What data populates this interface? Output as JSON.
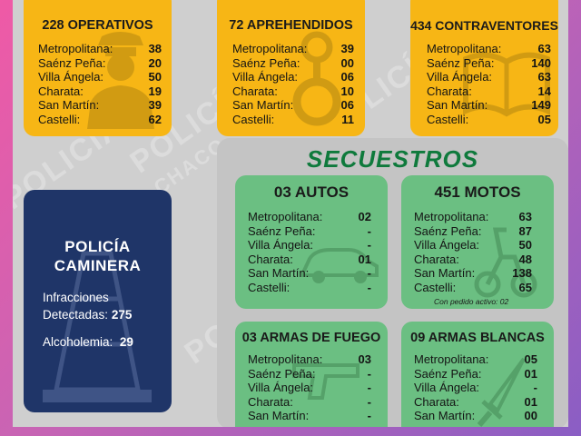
{
  "operativos": {
    "title": "228 OPERATIVOS",
    "rows": [
      {
        "label": "Metropolitana:",
        "value": "38"
      },
      {
        "label": "Saénz Peña:",
        "value": "20"
      },
      {
        "label": "Villa Ángela:",
        "value": "50"
      },
      {
        "label": "Charata:",
        "value": "19"
      },
      {
        "label": "San Martín:",
        "value": "39"
      },
      {
        "label": "Castelli:",
        "value": "62"
      }
    ]
  },
  "aprehendidos": {
    "title": "72 APREHENDIDOS",
    "rows": [
      {
        "label": "Metropolitana:",
        "value": "39"
      },
      {
        "label": "Saénz Peña:",
        "value": "00"
      },
      {
        "label": "Villa Ángela:",
        "value": "06"
      },
      {
        "label": "Charata:",
        "value": "10"
      },
      {
        "label": "San Martín:",
        "value": "06"
      },
      {
        "label": "Castelli:",
        "value": "11"
      }
    ]
  },
  "contraventores": {
    "title": "434 CONTRAVENTORES",
    "rows": [
      {
        "label": "Metropolitana:",
        "value": "63"
      },
      {
        "label": "Saénz Peña:",
        "value": "140"
      },
      {
        "label": "Villa Ángela:",
        "value": "63"
      },
      {
        "label": "Charata:",
        "value": "14"
      },
      {
        "label": "San Martín:",
        "value": "149"
      },
      {
        "label": "Castelli:",
        "value": "05"
      }
    ]
  },
  "secuestros": {
    "title": "SECUESTROS",
    "autos": {
      "title": "03 AUTOS",
      "rows": [
        {
          "label": "Metropolitana:",
          "value": "02"
        },
        {
          "label": "Saénz Peña:",
          "value": "-"
        },
        {
          "label": "Villa Ángela:",
          "value": "-"
        },
        {
          "label": "Charata:",
          "value": "01"
        },
        {
          "label": "San Martín:",
          "value": "-"
        },
        {
          "label": "Castelli:",
          "value": "-"
        }
      ]
    },
    "motos": {
      "title": "451 MOTOS",
      "rows": [
        {
          "label": "Metropolitana:",
          "value": "63"
        },
        {
          "label": "Saénz Peña:",
          "value": "87"
        },
        {
          "label": "Villa Ángela:",
          "value": "50"
        },
        {
          "label": "Charata:",
          "value": "48"
        },
        {
          "label": "San Martín:",
          "value": "138"
        },
        {
          "label": "Castelli:",
          "value": "65"
        }
      ],
      "note": "Con pedido activo: 02"
    },
    "armas_fuego": {
      "title": "03 ARMAS DE FUEGO",
      "rows": [
        {
          "label": "Metropolitana:",
          "value": "03"
        },
        {
          "label": "Saénz Peña:",
          "value": "-"
        },
        {
          "label": "Villa Ángela:",
          "value": "-"
        },
        {
          "label": "Charata:",
          "value": "-"
        },
        {
          "label": "San Martín:",
          "value": "-"
        }
      ]
    },
    "armas_blancas": {
      "title": "09 ARMAS BLANCAS",
      "rows": [
        {
          "label": "Metropolitana:",
          "value": "05"
        },
        {
          "label": "Saénz Peña:",
          "value": "01"
        },
        {
          "label": "Villa Ángela:",
          "value": "-"
        },
        {
          "label": "Charata:",
          "value": "01"
        },
        {
          "label": "San Martín:",
          "value": "00"
        }
      ]
    }
  },
  "caminera": {
    "title_line1": "POLICÍA",
    "title_line2": "CAMINERA",
    "infracciones_label1": "Infracciones",
    "infracciones_label2": "Detectadas:",
    "infracciones_value": "275",
    "alcoholemia_label": "Alcoholemia:",
    "alcoholemia_value": "29"
  },
  "watermark": {
    "line1": "POLICÍA",
    "line2": "CHACO"
  },
  "colors": {
    "yellow": "#f7b615",
    "green": "#6bbf82",
    "navy": "#1f3568",
    "title_green": "#0f7a3c",
    "pink": "#ef5aa6",
    "purple": "#8a5ec4"
  },
  "icons": [
    "police-officer-icon",
    "handcuffs-icon",
    "open-book-icon",
    "car-icon",
    "motorcycle-icon",
    "pistol-icon",
    "knife-icon",
    "traffic-cone-icon"
  ]
}
